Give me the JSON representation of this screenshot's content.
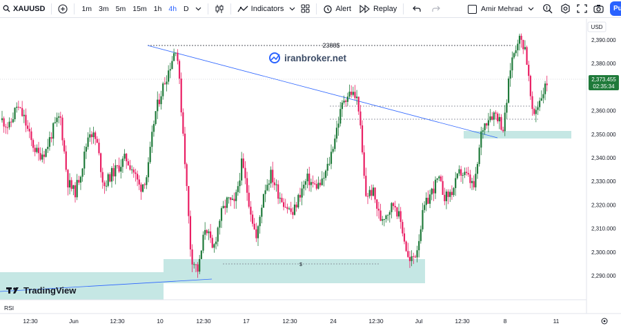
{
  "toolbar": {
    "symbol": "XAUUSD",
    "timeframes": [
      "1m",
      "3m",
      "5m",
      "15m",
      "1h",
      "4h",
      "D"
    ],
    "active_timeframe": "4h",
    "indicators_label": "Indicators",
    "alert_label": "Alert",
    "replay_label": "Replay",
    "user_name": "Amir Mehrad",
    "publish_label": "Pu"
  },
  "colors": {
    "up": "#26a69a",
    "up_body": "#1f7a3a",
    "down": "#e91e63",
    "zone": "#b2dfdb",
    "trend": "#2962ff",
    "accent": "#2962ff"
  },
  "chart": {
    "currency": "USD",
    "price_ticks": [
      "2,390.000",
      "2,380.000",
      "2,370.000",
      "2,360.000",
      "2,350.000",
      "2,340.000",
      "2,330.000",
      "2,320.000",
      "2,310.000",
      "2,300.000",
      "2,290.000"
    ],
    "last_price": "2,373.455",
    "countdown": "02:35:34",
    "time_labels": [
      "12:30",
      "Jun",
      "12:30",
      "10",
      "12:30",
      "17",
      "12:30",
      "24",
      "12:30",
      "Jul",
      "12:30",
      "8",
      "11"
    ],
    "top_label": "2388$",
    "mid_label": "$",
    "watermark": "iranbroker.net",
    "logo_text": "TradingView",
    "rsi_label": "RSI"
  },
  "chart_data": {
    "type": "candlestick",
    "symbol": "XAUUSD",
    "interval": "4h",
    "ylim": [
      2285,
      2396
    ],
    "y_ticks": [
      2290,
      2300,
      2310,
      2320,
      2330,
      2340,
      2350,
      2360,
      2370,
      2380,
      2390
    ],
    "x_ticks": [
      "12:30",
      "Jun",
      "12:30",
      "10",
      "12:30",
      "17",
      "12:30",
      "24",
      "12:30",
      "Jul",
      "12:30",
      "8",
      "11"
    ],
    "close_path": [
      2356,
      2353,
      2362,
      2357,
      2347,
      2341,
      2343,
      2352,
      2358,
      2330,
      2325,
      2336,
      2352,
      2347,
      2328,
      2333,
      2336,
      2340,
      2335,
      2327,
      2333,
      2358,
      2369,
      2378,
      2388,
      2347,
      2298,
      2292,
      2312,
      2300,
      2315,
      2322,
      2320,
      2338,
      2321,
      2305,
      2326,
      2333,
      2325,
      2320,
      2316,
      2325,
      2331,
      2328,
      2329,
      2338,
      2352,
      2365,
      2368,
      2364,
      2324,
      2326,
      2314,
      2317,
      2321,
      2311,
      2295,
      2300,
      2318,
      2325,
      2331,
      2323,
      2326,
      2334,
      2332,
      2327,
      2352,
      2358,
      2359,
      2352,
      2380,
      2391,
      2387,
      2357,
      2365,
      2372
    ],
    "horizontal_levels": [
      {
        "price": 2388,
        "label": "2388$"
      },
      {
        "price": 2296,
        "label": "$"
      }
    ],
    "zones": [
      {
        "from": 2288,
        "to": 2298
      },
      {
        "from": 2349,
        "to": 2352
      }
    ],
    "last_price": 2373.455
  }
}
